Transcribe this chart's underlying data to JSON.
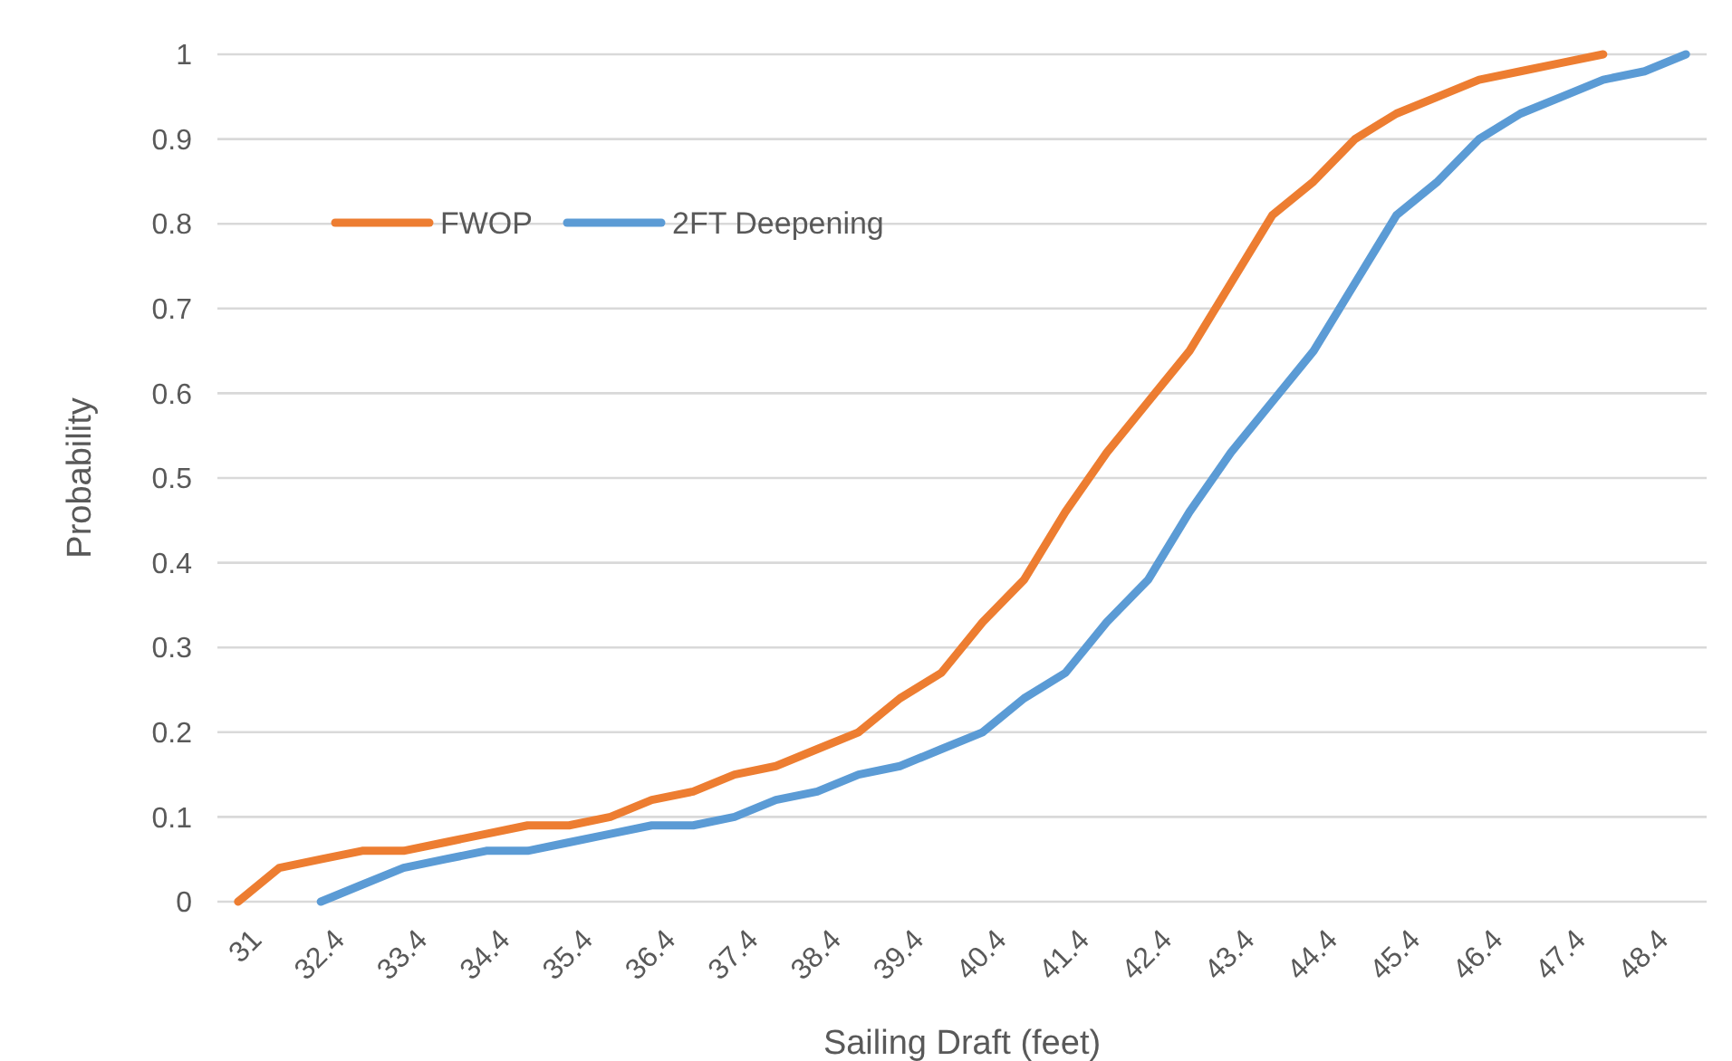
{
  "chart_data": {
    "type": "line",
    "xlabel": "Sailing Draft (feet)",
    "ylabel": "Probability",
    "categories": [
      "31",
      null,
      "32.4",
      null,
      "33.4",
      null,
      "34.4",
      null,
      "35.4",
      null,
      "36.4",
      null,
      "37.4",
      null,
      "38.4",
      null,
      "39.4",
      null,
      "40.4",
      null,
      "41.4",
      null,
      "42.4",
      null,
      "43.4",
      null,
      "44.4",
      null,
      "45.4",
      null,
      "46.4",
      null,
      "47.4",
      null,
      "48.4",
      null
    ],
    "series": [
      {
        "name": "FWOP",
        "color": "#ed7d31",
        "values": [
          0,
          0.04,
          0.05,
          0.06,
          0.06,
          0.07,
          0.08,
          0.09,
          0.09,
          0.1,
          0.12,
          0.13,
          0.15,
          0.16,
          0.18,
          0.2,
          0.24,
          0.27,
          0.33,
          0.38,
          0.46,
          0.53,
          0.59,
          0.65,
          0.73,
          0.81,
          0.85,
          0.9,
          0.93,
          0.95,
          0.97,
          0.98,
          0.99,
          1,
          null,
          null
        ]
      },
      {
        "name": "2FT Deepening",
        "color": "#5b9bd5",
        "values": [
          null,
          null,
          0,
          0.02,
          0.04,
          0.05,
          0.06,
          0.06,
          0.07,
          0.08,
          0.09,
          0.09,
          0.1,
          0.12,
          0.13,
          0.15,
          0.16,
          0.18,
          0.2,
          0.24,
          0.27,
          0.33,
          0.38,
          0.46,
          0.53,
          0.59,
          0.65,
          0.73,
          0.81,
          0.85,
          0.9,
          0.93,
          0.95,
          0.97,
          0.98,
          1
        ]
      }
    ],
    "ylim": [
      0,
      1
    ],
    "yticks": [
      0,
      0.1,
      0.2,
      0.3,
      0.4,
      0.5,
      0.6,
      0.7,
      0.8,
      0.9,
      1
    ],
    "grid": "y",
    "legend": "top left",
    "marker": "none",
    "line_style": "solid"
  }
}
